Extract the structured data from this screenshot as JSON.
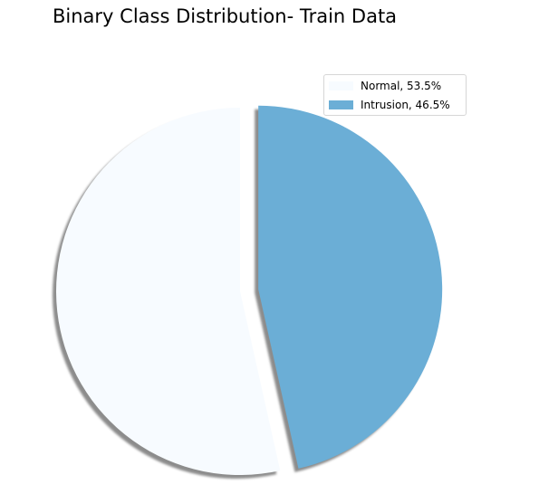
{
  "chart_data": {
    "type": "pie",
    "title": "Binary Class Distribution- Train Data",
    "slices": [
      {
        "label": "Normal",
        "percent": 53.5,
        "color": "#f7fbff",
        "exploded": false
      },
      {
        "label": "Intrusion",
        "percent": 46.5,
        "color": "#6baed6",
        "exploded": true
      }
    ],
    "legend": {
      "placement": "top-right",
      "entries": [
        "Normal, 53.5%",
        "Intrusion, 46.5%"
      ]
    },
    "start_angle": 90,
    "shadow": true
  }
}
